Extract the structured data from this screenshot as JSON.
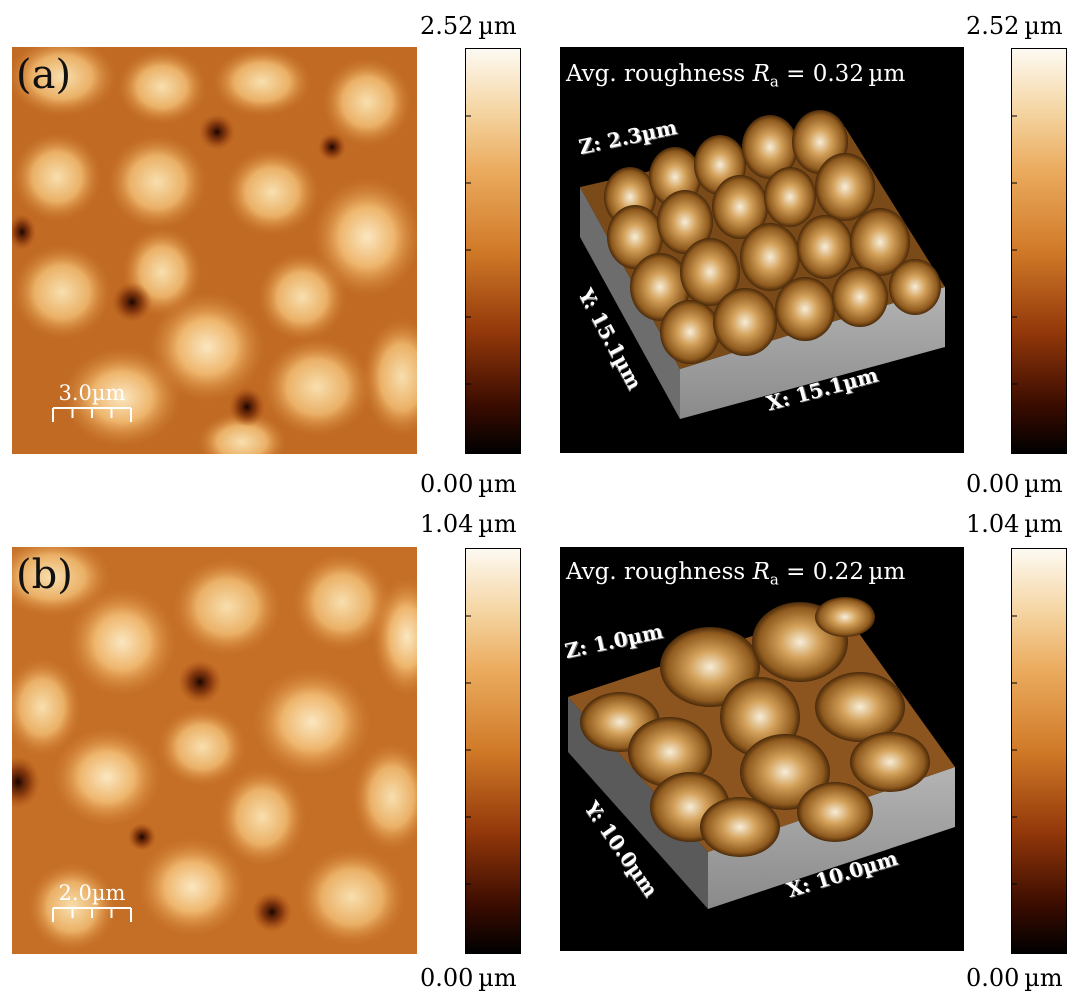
{
  "panel_a": {
    "label": "(a)",
    "scale_bar": "3.0µm",
    "colorbar_max": "2.52 µm",
    "colorbar_min": "0.00 µm",
    "roughness_prefix": "Avg. roughness ",
    "roughness_symbol": "R",
    "roughness_sub": "a",
    "roughness_value": " = 0.32 µm",
    "axis_z": "Z: 2.3µm",
    "axis_y": "Y: 15.1µm",
    "axis_x": "X: 15.1µm"
  },
  "panel_b": {
    "label": "(b)",
    "scale_bar": "2.0µm",
    "colorbar_max": "1.04 µm",
    "colorbar_min": "0.00 µm",
    "roughness_prefix": "Avg. roughness ",
    "roughness_symbol": "R",
    "roughness_sub": "a",
    "roughness_value": " = 0.22 µm",
    "axis_z": "Z: 1.0µm",
    "axis_y": "Y: 10.0µm",
    "axis_x": "X: 10.0µm"
  },
  "colormap": [
    "#000000",
    "#5a1600",
    "#a8480c",
    "#d98432",
    "#efb36a",
    "#f6dcac",
    "#fdf9f0"
  ]
}
